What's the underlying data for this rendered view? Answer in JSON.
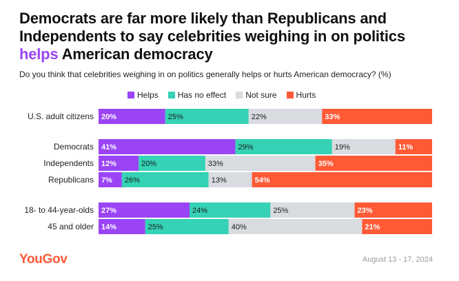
{
  "title": {
    "line_before": "Democrats are far more likely than Republicans and Independents to say celebrities weighing in on politics",
    "highlight": "helps",
    "line_after": " American democracy"
  },
  "subtitle": "Do you think that celebrities weighing in on politics generally helps or hurts American democracy? (%)",
  "footer": {
    "brand": "YouGov",
    "date": "August 13 - 17, 2024"
  },
  "colors": {
    "helps": "#9a44f5",
    "no_effect": "#35d2b5",
    "not_sure": "#d8dbe0",
    "hurts": "#ff5a36"
  },
  "chart_data": {
    "type": "bar",
    "orientation": "horizontal",
    "stacked": true,
    "legend_position": "top",
    "series": [
      {
        "name": "Helps",
        "color": "#9a44f5",
        "values": [
          20,
          41,
          12,
          7,
          27,
          14
        ]
      },
      {
        "name": "Has no effect",
        "color": "#35d2b5",
        "values": [
          25,
          29,
          20,
          26,
          24,
          25
        ]
      },
      {
        "name": "Not sure",
        "color": "#d8dbe0",
        "values": [
          22,
          19,
          33,
          13,
          25,
          40
        ]
      },
      {
        "name": "Hurts",
        "color": "#ff5a36",
        "values": [
          33,
          11,
          35,
          54,
          23,
          21
        ]
      }
    ],
    "categories": [
      "U.S. adult citizens",
      "Democrats",
      "Independents",
      "Republicans",
      "18- to 44-year-olds",
      "45 and older"
    ],
    "groups": [
      [
        0
      ],
      [
        1,
        2,
        3
      ],
      [
        4,
        5
      ]
    ],
    "value_suffix": "%"
  }
}
